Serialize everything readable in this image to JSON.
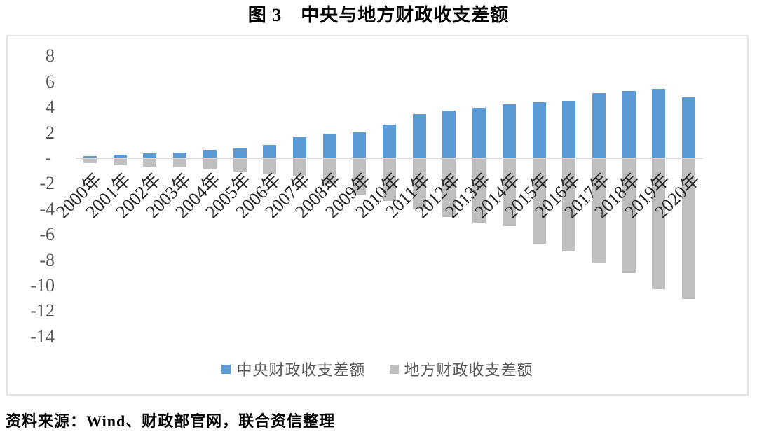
{
  "title": "图 3　中央与地方财政收支差额",
  "source_note": "资料来源：Wind、财政部官网，联合资信整理",
  "colors": {
    "central_bar": "#5B9BD5",
    "local_bar": "#BFBFBF",
    "zero_axis_line": "#D9D9D9",
    "frame_border": "#E3E3E3",
    "axis_text": "#595959",
    "category_text": "#262626"
  },
  "chart_data": {
    "type": "bar",
    "title": "图 3　中央与地方财政收支差额",
    "categories": [
      "2000年",
      "2001年",
      "2002年",
      "2003年",
      "2004年",
      "2005年",
      "2006年",
      "2007年",
      "2008年",
      "2009年",
      "2010年",
      "2011年",
      "2012年",
      "2013年",
      "2014年",
      "2015年",
      "2016年",
      "2017年",
      "2018年",
      "2019年",
      "2020年"
    ],
    "series": [
      {
        "name": "中央财政收支差额",
        "color": "#5B9BD5",
        "values": [
          0.15,
          0.28,
          0.36,
          0.45,
          0.66,
          0.77,
          1.05,
          1.63,
          1.93,
          2.06,
          2.65,
          3.48,
          3.74,
          3.97,
          4.23,
          4.37,
          4.5,
          5.12,
          5.28,
          5.43,
          4.78
        ]
      },
      {
        "name": "地方财政收支差额",
        "color": "#BFBFBF",
        "values": [
          -0.4,
          -0.53,
          -0.68,
          -0.74,
          -0.87,
          -1.02,
          -1.21,
          -1.44,
          -2.04,
          -2.84,
          -3.33,
          -4.02,
          -4.61,
          -5.07,
          -5.33,
          -6.73,
          -7.32,
          -8.18,
          -9.03,
          -10.26,
          -11.04
        ]
      }
    ],
    "xlabel": "",
    "ylabel": "",
    "ylim": [
      -14,
      8
    ],
    "ytick_step": 2,
    "yticks": [
      {
        "value": 8,
        "label": "8"
      },
      {
        "value": 6,
        "label": "6"
      },
      {
        "value": 4,
        "label": "4"
      },
      {
        "value": 2,
        "label": "2"
      },
      {
        "value": 0,
        "label": "-"
      },
      {
        "value": -2,
        "label": "-2"
      },
      {
        "value": -4,
        "label": "-4"
      },
      {
        "value": -6,
        "label": "-6"
      },
      {
        "value": -8,
        "label": "-8"
      },
      {
        "value": -10,
        "label": "-10"
      },
      {
        "value": -12,
        "label": "-12"
      },
      {
        "value": -14,
        "label": "-14"
      }
    ],
    "grid": false,
    "legend_position": "bottom-center"
  }
}
